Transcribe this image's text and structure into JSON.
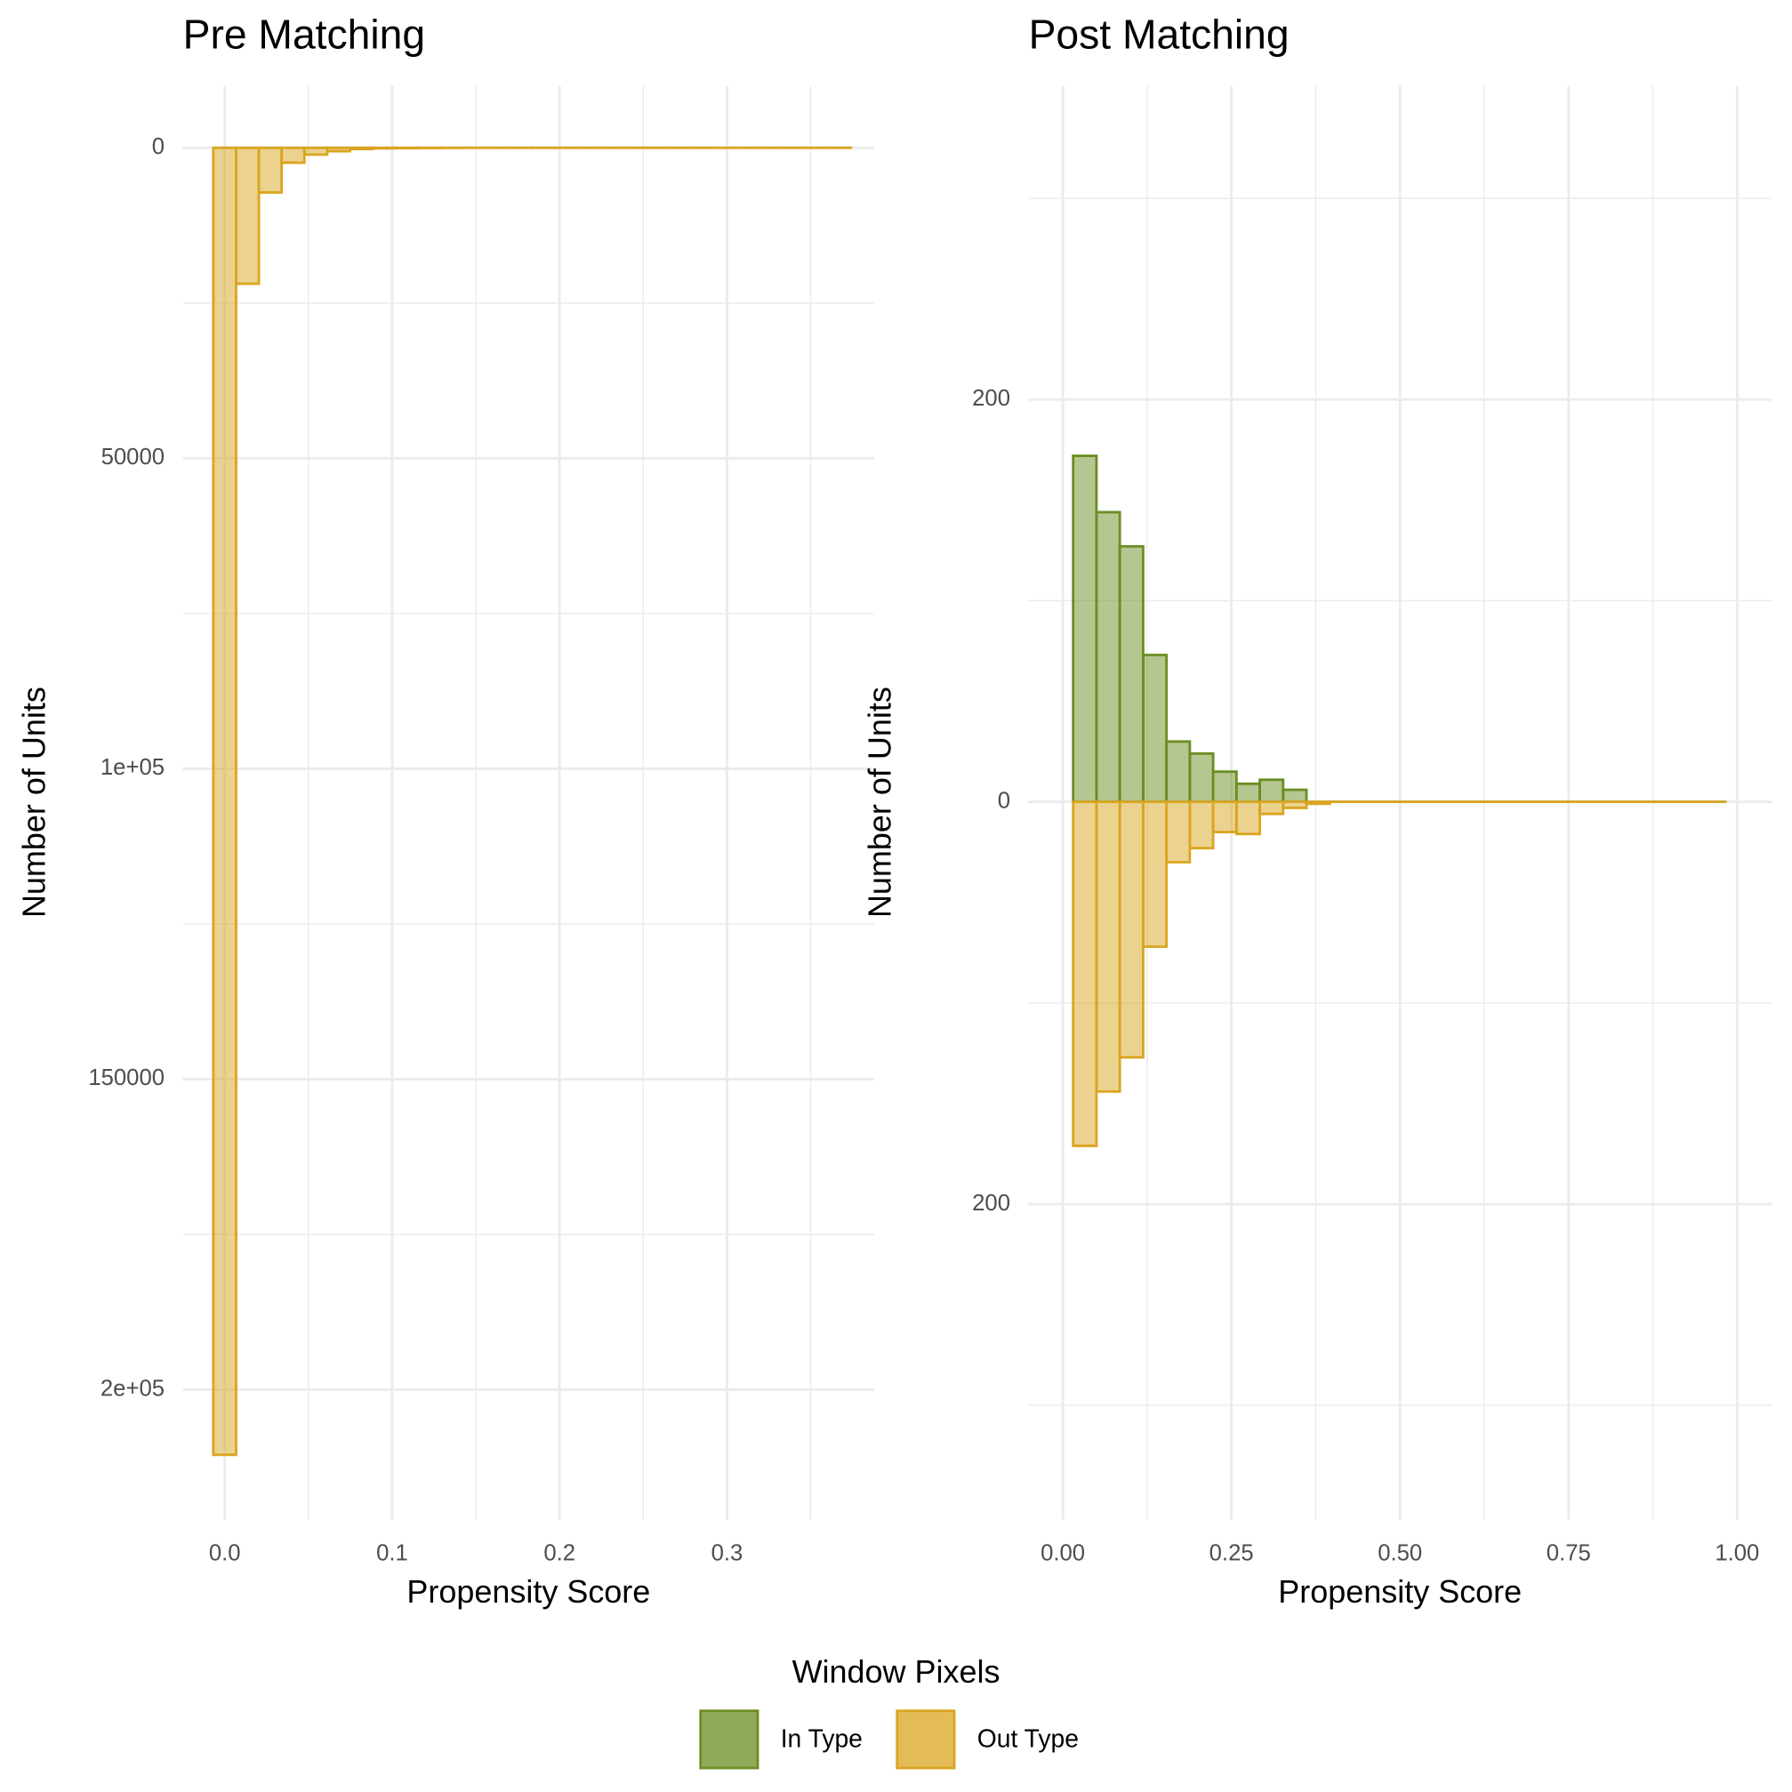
{
  "chart_data": [
    {
      "type": "histogram",
      "title": "Pre Matching",
      "x_label": "Propensity Score",
      "y_label": "Number of Units",
      "bins": [
        -0.0068,
        0.0068,
        0.0204,
        0.034,
        0.0476,
        0.0612,
        0.0748,
        0.0884,
        0.102,
        0.1156,
        0.1292,
        0.1428,
        0.1564,
        0.17,
        0.1836,
        0.1972,
        0.2108,
        0.2244,
        0.238,
        0.2516,
        0.2652,
        0.2788,
        0.2924,
        0.306,
        0.3196,
        0.3332,
        0.3468,
        0.3604,
        0.374
      ],
      "series": [
        {
          "name": "Out Type",
          "color": "#daa520",
          "values": [
            -210500,
            -21900,
            -7200,
            -2400,
            -1100,
            -550,
            -200,
            -100,
            -50,
            -30,
            -20,
            -10,
            -8,
            -5,
            -4,
            -3,
            -2,
            -2,
            -1,
            -1,
            -1,
            0,
            0,
            0,
            0,
            0,
            0,
            -1
          ]
        }
      ],
      "xlim": [
        -0.025,
        0.388
      ],
      "ylim": [
        -221000,
        10000
      ],
      "xticks": [
        {
          "value": 0,
          "label": "0.0"
        },
        0.1,
        0.2,
        0.3
      ],
      "yticks": [
        0,
        {
          "value": -50000,
          "label": "50000"
        },
        {
          "value": -100000,
          "label": "1e+05"
        },
        {
          "value": -150000,
          "label": "150000"
        },
        {
          "value": -200000,
          "label": "2e+05"
        }
      ],
      "xminor": [
        0.05,
        0.15,
        0.25,
        0.35
      ],
      "yminor": [
        -25000,
        -75000,
        -125000,
        -175000
      ],
      "grid": true
    },
    {
      "type": "histogram",
      "title": "Post Matching",
      "x_label": "Propensity Score",
      "y_label": "Number of Units",
      "bins": [
        0.0153,
        0.0499,
        0.0845,
        0.1191,
        0.1537,
        0.1883,
        0.2229,
        0.2575,
        0.2921,
        0.3267,
        0.3613,
        0.3959,
        0.4305,
        0.4651,
        0.4997,
        0.5343,
        0.5689,
        0.6035,
        0.6381,
        0.6727,
        0.7073,
        0.7419,
        0.7765,
        0.8111,
        0.8457,
        0.8803,
        0.9149,
        0.9495,
        0.9841
      ],
      "series": [
        {
          "name": "In Type",
          "color": "#6b8e23",
          "values": [
            172,
            144,
            127,
            73,
            30,
            24,
            15,
            9,
            11,
            6,
            0,
            0,
            0,
            0,
            0,
            0,
            0,
            0,
            0,
            0,
            0,
            0,
            0,
            0,
            0,
            0,
            0,
            0
          ]
        },
        {
          "name": "Out Type",
          "color": "#daa520",
          "values": [
            -171,
            -144,
            -127,
            -72,
            -30,
            -23,
            -15,
            -16,
            -6,
            -3,
            -1,
            0,
            0,
            0,
            0,
            0,
            0,
            0,
            0,
            0,
            0,
            0,
            0,
            0,
            0,
            0,
            0,
            0
          ]
        }
      ],
      "xlim": [
        -0.0508,
        1.0508
      ],
      "ylim": [
        -357,
        356
      ],
      "xticks": [
        {
          "value": 0,
          "label": "0.00"
        },
        0.25,
        {
          "value": 0.5,
          "label": "0.50"
        },
        0.75,
        {
          "value": 1,
          "label": "1.00"
        }
      ],
      "yticks": [
        200,
        0,
        {
          "value": -200,
          "label": "200"
        }
      ],
      "xminor": [
        0.125,
        0.375,
        0.625,
        0.875
      ],
      "yminor": [
        300,
        100,
        -100,
        -300
      ],
      "grid": true,
      "legend_title": "Window Pixels"
    }
  ]
}
